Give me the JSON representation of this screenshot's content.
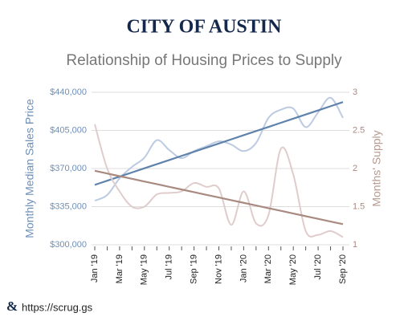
{
  "chart_data": {
    "type": "line",
    "title": "CITY OF AUSTIN",
    "subtitle": "Relationship of Housing Prices to Supply",
    "y_label": "Monthly Median Sales Price",
    "y2_label": "Months' Supply",
    "categories": [
      "Jan '19",
      null,
      "Mar '19",
      null,
      "May '19",
      null,
      "Jul '19",
      null,
      "Sep '19",
      null,
      "Nov '19",
      null,
      "Jan '20",
      null,
      "Mar '20",
      null,
      "May '20",
      null,
      "Jul '20",
      null,
      "Sep '20"
    ],
    "series": [
      {
        "color": "#bccbe2",
        "smooth": true,
        "values": [
          340500,
          345700,
          361000,
          371500,
          380000,
          396000,
          387000,
          379500,
          386000,
          390500,
          395000,
          392000,
          386000,
          393500,
          416500,
          424000,
          425000,
          408000,
          421500,
          435000,
          416500
        ]
      },
      {
        "color": "#5f82ab",
        "smooth": false,
        "values": [
          355000,
          358800,
          362600,
          366400,
          370200,
          374000,
          377800,
          381600,
          385400,
          389200,
          393000,
          396800,
          400600,
          404400,
          408200,
          412000,
          415800,
          419600,
          423400,
          427200,
          431000
        ]
      },
      {
        "color": "#e0cccc",
        "smooth": true,
        "axis": "y2",
        "values": [
          2.58,
          2.0,
          1.7,
          1.5,
          1.5,
          1.66,
          1.68,
          1.7,
          1.81,
          1.76,
          1.74,
          1.26,
          1.7,
          1.28,
          1.39,
          2.26,
          1.92,
          1.18,
          1.13,
          1.18,
          1.1
        ]
      },
      {
        "color": "#a98a80",
        "smooth": false,
        "axis": "y2",
        "values": [
          1.97,
          1.935,
          1.9,
          1.865,
          1.83,
          1.795,
          1.76,
          1.725,
          1.69,
          1.655,
          1.62,
          1.585,
          1.55,
          1.515,
          1.48,
          1.445,
          1.41,
          1.375,
          1.34,
          1.305,
          1.27
        ]
      }
    ],
    "ylim": [
      300000,
      440000
    ],
    "yticks": [
      {
        "value": 300000,
        "label": "$300,000"
      },
      {
        "value": 335000,
        "label": "$335,000"
      },
      {
        "value": 370000,
        "label": "$370,000"
      },
      {
        "value": 405000,
        "label": "$405,000"
      },
      {
        "value": 440000,
        "label": "$440,000"
      }
    ],
    "y2lim": [
      1,
      3
    ],
    "y2ticks": [
      1,
      1.5,
      2,
      2.5,
      3
    ],
    "grid": true,
    "footer": "https://scrug.gs"
  }
}
